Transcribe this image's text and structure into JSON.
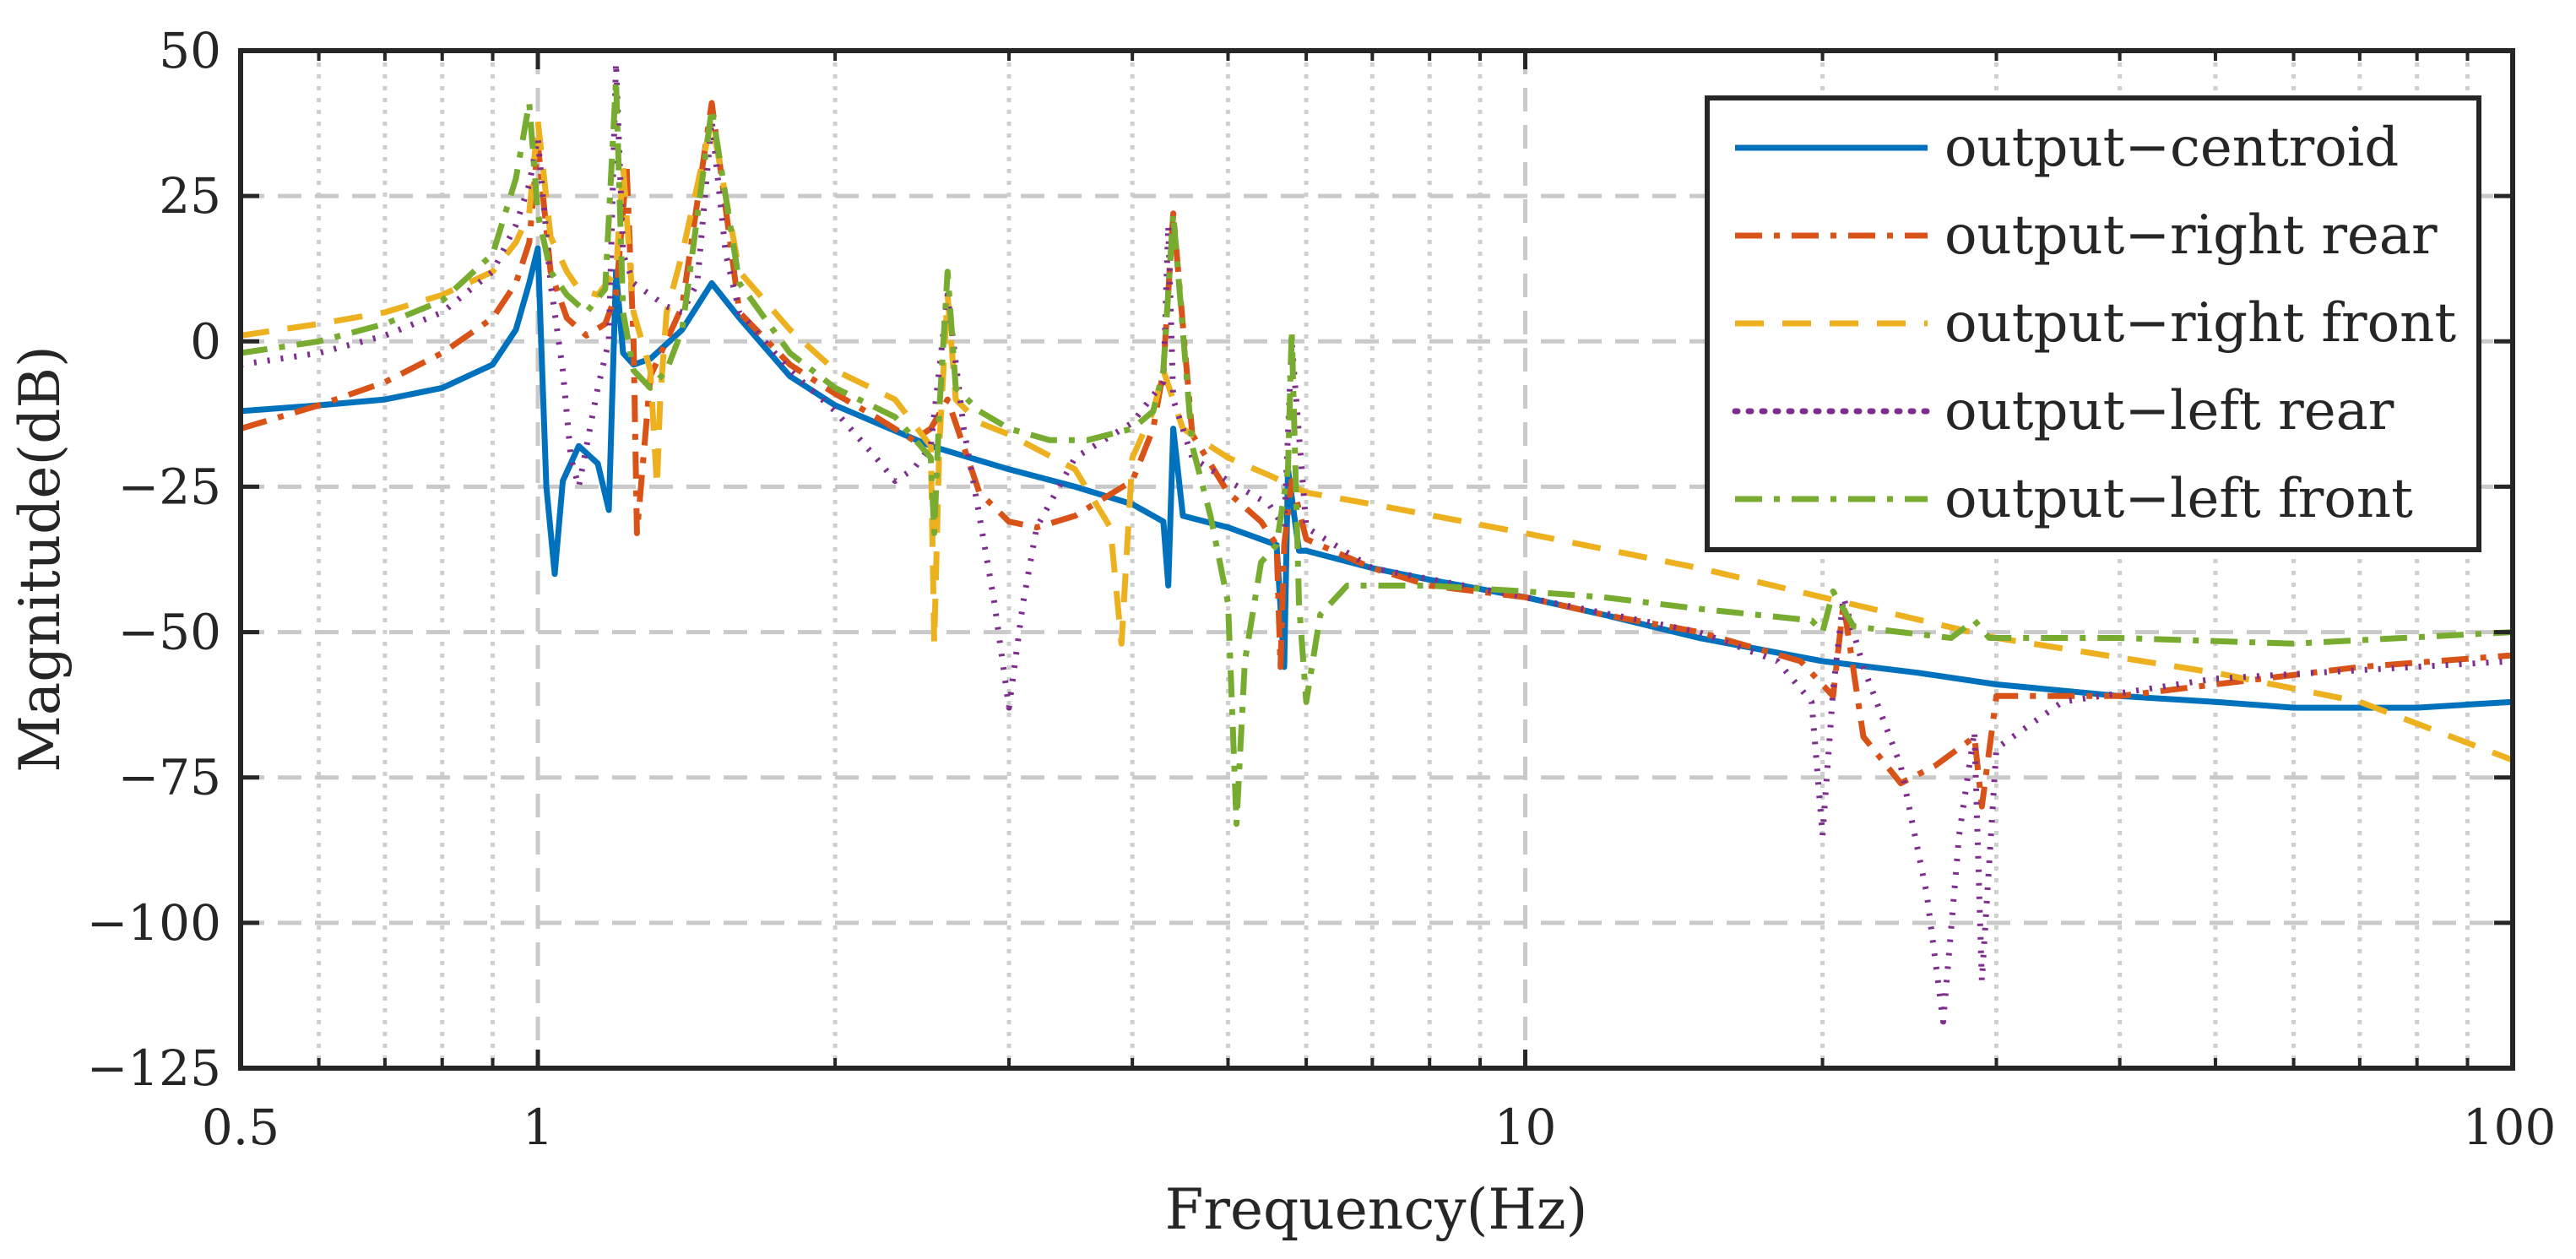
{
  "chart_data": {
    "type": "line",
    "title": "",
    "xlabel": "Frequency(Hz)",
    "ylabel": "Magnitude(dB)",
    "xscale": "log",
    "xlim": [
      0.5,
      100
    ],
    "ylim": [
      -125,
      50
    ],
    "grid": true,
    "x_ticks": [
      0.5,
      1,
      10,
      100
    ],
    "x_tick_labels": [
      "0.5",
      "1",
      "10",
      "100"
    ],
    "y_ticks": [
      50,
      25,
      0,
      -25,
      -50,
      -75,
      -100,
      -125
    ],
    "y_tick_labels": [
      "50",
      "25",
      "0",
      "−25",
      "−50",
      "−75",
      "−100",
      "−125"
    ],
    "legend_position": "top-right",
    "series": [
      {
        "name": "output−centroid",
        "color": "#0072BD",
        "style": "solid",
        "x": [
          0.5,
          0.6,
          0.7,
          0.8,
          0.9,
          0.95,
          0.98,
          1.0,
          1.02,
          1.04,
          1.06,
          1.1,
          1.15,
          1.18,
          1.2,
          1.22,
          1.25,
          1.3,
          1.4,
          1.5,
          1.6,
          1.8,
          2.0,
          2.5,
          3.0,
          3.5,
          4.0,
          4.3,
          4.35,
          4.4,
          4.5,
          5.0,
          5.6,
          5.7,
          5.75,
          5.9,
          6.0,
          7.0,
          8.0,
          10.0,
          12.0,
          15.0,
          20.0,
          25.0,
          30.0,
          40.0,
          50.0,
          60.0,
          70.0,
          80.0,
          100.0
        ],
        "values": [
          -12,
          -11,
          -10,
          -8,
          -4,
          2,
          10,
          16,
          -25,
          -40,
          -24,
          -18,
          -21,
          -29,
          12,
          -2,
          -4,
          -3,
          2,
          10,
          4,
          -6,
          -11,
          -18,
          -22,
          -25,
          -28,
          -31,
          -42,
          -15,
          -30,
          -32,
          -35,
          -56,
          -22,
          -36,
          -36,
          -39,
          -41,
          -44,
          -47,
          -51,
          -55,
          -57,
          -59,
          -61,
          -62,
          -63,
          -63,
          -63,
          -62
        ]
      },
      {
        "name": "output−right rear",
        "color": "#D95319",
        "style": "dashdot",
        "x": [
          0.5,
          0.6,
          0.7,
          0.8,
          0.9,
          0.95,
          0.98,
          1.0,
          1.03,
          1.07,
          1.12,
          1.17,
          1.2,
          1.23,
          1.25,
          1.26,
          1.3,
          1.4,
          1.5,
          1.6,
          1.8,
          2.0,
          2.2,
          2.4,
          2.5,
          2.6,
          2.8,
          3.0,
          3.2,
          3.5,
          4.0,
          4.2,
          4.3,
          4.4,
          4.6,
          5.0,
          5.4,
          5.6,
          5.65,
          5.7,
          5.8,
          6.0,
          7.0,
          8.0,
          10.0,
          12.0,
          15.0,
          19.0,
          20.5,
          21.0,
          22.0,
          24.0,
          26.0,
          28.0,
          28.5,
          29.0,
          30.0,
          40.0,
          50.0,
          70.0,
          100.0
        ],
        "values": [
          -15,
          -11,
          -7,
          -2,
          4,
          10,
          17,
          34,
          12,
          4,
          1,
          3,
          8,
          30,
          0,
          -33,
          -6,
          6,
          41,
          5,
          -4,
          -9,
          -13,
          -17,
          -15,
          -10,
          -26,
          -31,
          -32,
          -30,
          -24,
          -15,
          -5,
          22,
          -16,
          -26,
          -31,
          -35,
          -56,
          -35,
          -24,
          -34,
          -39,
          -42,
          -44,
          -47,
          -50,
          -55,
          -61,
          -45,
          -68,
          -76,
          -73,
          -69,
          -68,
          -80,
          -61,
          -61,
          -59,
          -56,
          -54
        ]
      },
      {
        "name": "output−right front",
        "color": "#EDB120",
        "style": "dashed",
        "x": [
          0.5,
          0.6,
          0.7,
          0.8,
          0.9,
          0.95,
          0.98,
          1.0,
          1.03,
          1.07,
          1.1,
          1.15,
          1.2,
          1.22,
          1.25,
          1.3,
          1.32,
          1.33,
          1.35,
          1.4,
          1.5,
          1.6,
          1.8,
          2.0,
          2.3,
          2.5,
          2.52,
          2.55,
          2.6,
          2.65,
          2.8,
          3.0,
          3.5,
          3.8,
          3.9,
          4.0,
          4.2,
          4.3,
          4.5,
          5.0,
          5.5,
          6.0,
          7.0,
          10.0,
          15.0,
          20.0,
          30.0,
          50.0,
          70.0,
          100.0
        ],
        "values": [
          1,
          3,
          5,
          8,
          12,
          17,
          22,
          38,
          18,
          12,
          9,
          8,
          12,
          30,
          5,
          -5,
          -25,
          -10,
          5,
          15,
          38,
          12,
          2,
          -5,
          -10,
          -18,
          -52,
          -18,
          8,
          -10,
          -14,
          -16,
          -22,
          -32,
          -52,
          -20,
          -12,
          -5,
          -15,
          -20,
          -23,
          -26,
          -28,
          -33,
          -39,
          -44,
          -51,
          -57,
          -62,
          -72
        ]
      },
      {
        "name": "output−left rear",
        "color": "#7E2F8E",
        "style": "dotted",
        "x": [
          0.5,
          0.6,
          0.7,
          0.8,
          0.9,
          0.95,
          0.98,
          1.0,
          1.03,
          1.06,
          1.08,
          1.1,
          1.15,
          1.18,
          1.2,
          1.22,
          1.25,
          1.3,
          1.35,
          1.4,
          1.45,
          1.5,
          1.55,
          1.6,
          1.8,
          2.0,
          2.2,
          2.3,
          2.4,
          2.5,
          2.6,
          2.7,
          2.8,
          2.9,
          3.0,
          3.1,
          3.2,
          3.5,
          4.0,
          4.3,
          4.35,
          4.4,
          4.6,
          5.0,
          5.5,
          5.7,
          5.8,
          6.0,
          7.0,
          10.0,
          15.0,
          18.0,
          19.5,
          20.0,
          20.5,
          21.0,
          22.0,
          24.0,
          25.5,
          26.5,
          27.5,
          28.5,
          29.0,
          30.0,
          35.0,
          50.0,
          100.0
        ],
        "values": [
          -4,
          -2,
          1,
          5,
          12,
          20,
          27,
          35,
          10,
          -5,
          -20,
          -25,
          -8,
          0,
          48,
          15,
          10,
          8,
          6,
          5,
          10,
          38,
          15,
          5,
          -5,
          -12,
          -20,
          -24,
          -22,
          -18,
          8,
          -15,
          -30,
          -45,
          -63,
          -45,
          -32,
          -20,
          -14,
          -7,
          20,
          -10,
          -20,
          -24,
          -28,
          -32,
          0,
          -32,
          -39,
          -44,
          -50,
          -55,
          -62,
          -85,
          -60,
          -44,
          -56,
          -73,
          -95,
          -117,
          -85,
          -67,
          -110,
          -70,
          -62,
          -58,
          -55
        ]
      },
      {
        "name": "output−left front",
        "color": "#77AC30",
        "style": "dashdot",
        "x": [
          0.5,
          0.6,
          0.7,
          0.8,
          0.9,
          0.95,
          0.98,
          1.0,
          1.03,
          1.07,
          1.12,
          1.17,
          1.2,
          1.22,
          1.25,
          1.3,
          1.35,
          1.4,
          1.5,
          1.6,
          1.8,
          2.0,
          2.3,
          2.5,
          2.52,
          2.55,
          2.6,
          2.65,
          2.8,
          3.0,
          3.3,
          3.6,
          4.0,
          4.2,
          4.3,
          4.4,
          4.6,
          4.8,
          5.0,
          5.1,
          5.2,
          5.4,
          5.6,
          5.75,
          5.8,
          5.9,
          6.0,
          6.2,
          6.6,
          7.0,
          8.0,
          10.0,
          12.0,
          15.0,
          19.5,
          20.0,
          20.5,
          21.5,
          24.0,
          27.0,
          28.5,
          29.5,
          32.0,
          40.0,
          60.0,
          100.0
        ],
        "values": [
          -2,
          0,
          3,
          7,
          15,
          28,
          41,
          22,
          12,
          8,
          5,
          9,
          45,
          5,
          -5,
          -8,
          -5,
          2,
          40,
          10,
          -2,
          -8,
          -13,
          -20,
          -33,
          -12,
          12,
          -8,
          -12,
          -15,
          -17,
          -17,
          -15,
          -12,
          -5,
          22,
          -18,
          -30,
          -45,
          -83,
          -55,
          -38,
          -35,
          -22,
          2,
          -45,
          -62,
          -47,
          -42,
          -42,
          -42,
          -43,
          -44,
          -46,
          -48,
          -50,
          -43,
          -49,
          -50,
          -51,
          -48,
          -51,
          -51,
          -51,
          -52,
          -50
        ]
      }
    ]
  }
}
